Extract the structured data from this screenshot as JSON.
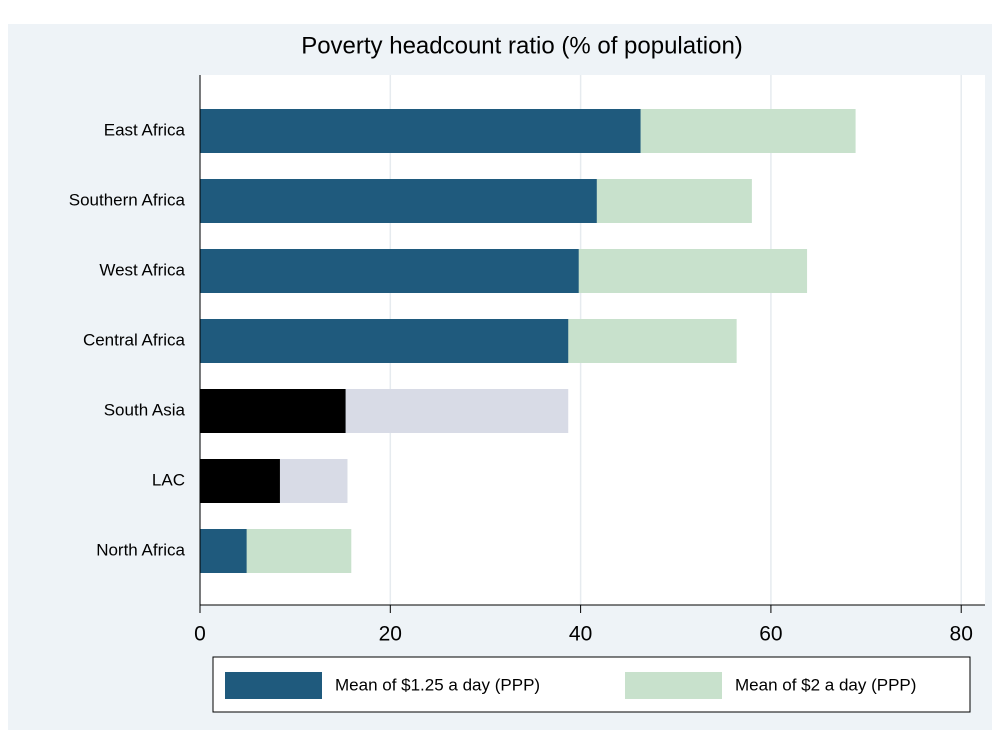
{
  "chart_data": {
    "type": "overlaid-hbar",
    "title": "Poverty headcount ratio (% of population)",
    "categories": [
      "East Africa",
      "Southern Africa",
      "West Africa",
      "Central Africa",
      "South Asia",
      "LAC",
      "North Africa"
    ],
    "series": [
      {
        "name": "Mean of $2 a day (PPP)",
        "color": "#c8e1cc",
        "colors": [
          "#c8e1cc",
          "#c8e1cc",
          "#c8e1cc",
          "#c8e1cc",
          "#d8dbe6",
          "#d8dbe6",
          "#c8e1cc"
        ],
        "values": [
          68.9,
          58.0,
          63.8,
          56.4,
          38.7,
          15.5,
          15.9
        ]
      },
      {
        "name": "Mean of $1.25 a day (PPP)",
        "color": "#1f5a7d",
        "colors": [
          "#1f5a7d",
          "#1f5a7d",
          "#1f5a7d",
          "#1f5a7d",
          "#000000",
          "#000000",
          "#1f5a7d"
        ],
        "values": [
          46.3,
          41.7,
          39.8,
          38.7,
          15.3,
          8.4,
          4.9
        ]
      }
    ],
    "legend_order": [
      1,
      0
    ],
    "xlim": [
      0,
      82.5
    ],
    "xticks": [
      0,
      20,
      40,
      60,
      80
    ],
    "grid": true
  }
}
